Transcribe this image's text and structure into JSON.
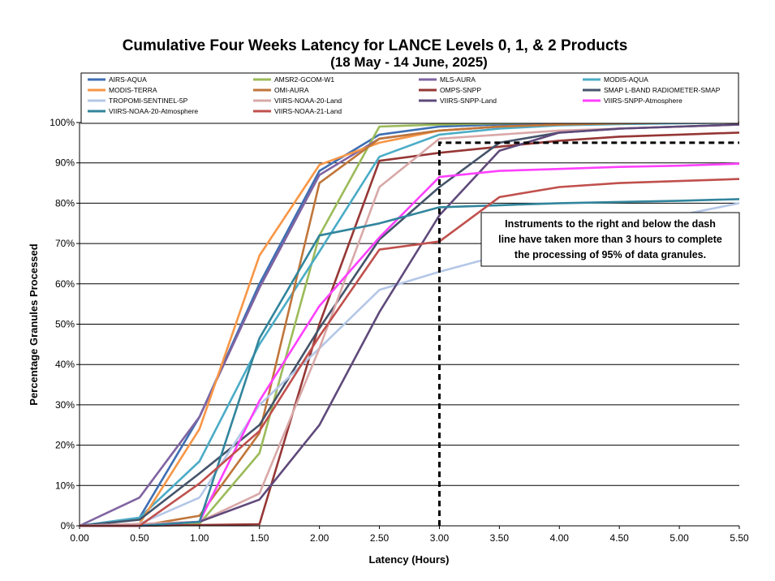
{
  "chart_data": {
    "type": "line",
    "title": "Cumulative Four Weeks Latency  for LANCE Levels 0, 1, & 2 Products",
    "subtitle": "(18  May   -  14  June,  2025)",
    "xlabel": "Latency (Hours)",
    "ylabel": "Percentage Granules Processed",
    "xlim": [
      0,
      5.5
    ],
    "ylim": [
      0,
      100
    ],
    "x_ticks": [
      "0.00",
      "0.50",
      "1.00",
      "1.50",
      "2.00",
      "2.50",
      "3.00",
      "3.50",
      "4.00",
      "4.50",
      "5.00",
      "5.50"
    ],
    "y_ticks": [
      "0%",
      "10%",
      "20%",
      "30%",
      "40%",
      "50%",
      "60%",
      "70%",
      "80%",
      "90%",
      "100%"
    ],
    "grid": "horizontal",
    "x": [
      0,
      0.5,
      1.0,
      1.5,
      2.0,
      2.5,
      3.0,
      3.5,
      4.0,
      4.5,
      5.0,
      5.5
    ],
    "series": [
      {
        "name": "AIRS-AQUA",
        "color": "#3e6fb3",
        "values": [
          0,
          2,
          27,
          60,
          88,
          97,
          99,
          99.5,
          99.8,
          99.9,
          100,
          100
        ]
      },
      {
        "name": "AMSR2-GCOM-W1",
        "color": "#9bbb59",
        "values": [
          0,
          0,
          0.5,
          18,
          72,
          99,
          99.5,
          99.8,
          100,
          100,
          100,
          100
        ]
      },
      {
        "name": "MLS-AURA",
        "color": "#8064a2",
        "values": [
          0,
          7,
          27,
          59,
          87,
          96,
          98,
          99,
          99.5,
          99.8,
          100,
          100
        ]
      },
      {
        "name": "MODIS-AQUA",
        "color": "#4bacc6",
        "values": [
          0,
          2,
          16,
          45,
          68,
          91.5,
          97,
          98.5,
          99.3,
          99.6,
          99.8,
          100
        ]
      },
      {
        "name": "MODIS-TERRA",
        "color": "#f79646",
        "values": [
          0,
          0.5,
          24,
          67,
          89.5,
          95,
          98,
          99,
          99.5,
          99.8,
          100,
          100
        ]
      },
      {
        "name": "OMI-AURA",
        "color": "#c0763a",
        "values": [
          0,
          0,
          2.5,
          23,
          85,
          96,
          98,
          99,
          99.5,
          99.8,
          100,
          100
        ]
      },
      {
        "name": "OMPS-SNPP",
        "color": "#953735",
        "values": [
          0,
          0,
          0.2,
          0.4,
          50,
          90.5,
          92.5,
          94,
          95.5,
          96.5,
          97,
          97.5
        ]
      },
      {
        "name": "SMAP L-BAND RADIOMETER-SMAP",
        "color": "#44546a",
        "values": [
          0,
          1.5,
          13,
          25,
          49,
          71,
          84,
          95,
          97.5,
          98.5,
          99,
          99.5
        ]
      },
      {
        "name": "TROPOMI-SENTINEL-5P",
        "color": "#b4c7e7",
        "values": [
          0,
          0.5,
          7,
          30,
          44,
          58.5,
          63,
          67,
          71,
          74,
          77,
          80
        ]
      },
      {
        "name": "VIIRS-NOAA-20-Land",
        "color": "#d9a8a8",
        "values": [
          0,
          0.5,
          1,
          8,
          44,
          84,
          96,
          97,
          98,
          98.5,
          99,
          99.5
        ]
      },
      {
        "name": "VIIRS-SNPP-Land",
        "color": "#5f497a",
        "values": [
          0,
          0,
          1,
          6.5,
          25,
          53,
          77,
          93,
          97.5,
          98.5,
          99,
          99.5
        ]
      },
      {
        "name": "VIIRS-SNPP-Atmosphere",
        "color": "#ff40ff",
        "values": [
          0,
          0,
          1,
          31,
          54.5,
          71.5,
          86.5,
          88,
          88.5,
          89,
          89.3,
          89.8
        ]
      },
      {
        "name": "VIIRS-NOAA-20-Atmosphere",
        "color": "#31859c",
        "values": [
          0,
          0,
          1,
          46.5,
          72,
          75,
          79,
          79.5,
          80,
          80.3,
          80.6,
          81
        ]
      },
      {
        "name": "VIIRS-NOAA-21-Land",
        "color": "#c0504d",
        "values": [
          0,
          0,
          10.5,
          23.5,
          47,
          68.5,
          70.5,
          81.5,
          84,
          85,
          85.5,
          86
        ]
      }
    ],
    "reference_line": {
      "x": 3.0,
      "y": 95,
      "style": "dashed",
      "color": "#000000"
    },
    "annotation": [
      "Instruments to the right and below the dash",
      "line have taken more than 3 hours to complete",
      "the processing of 95% of data granules."
    ]
  }
}
